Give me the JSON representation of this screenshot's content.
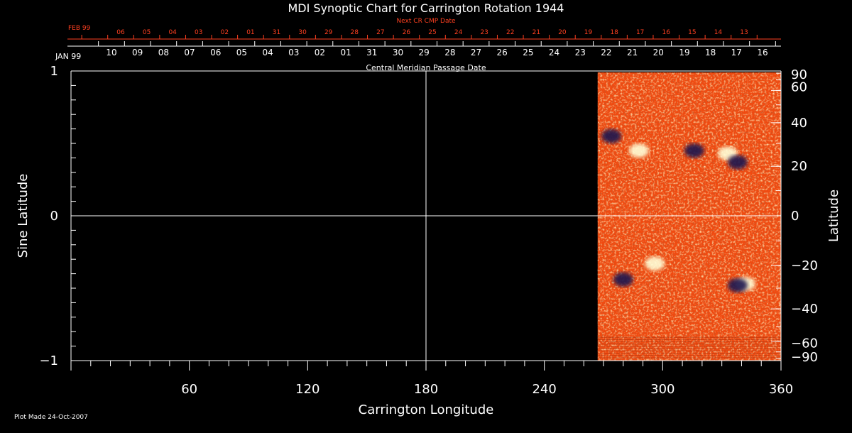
{
  "chart_data": {
    "type": "heatmap",
    "title": "MDI Synoptic Chart for Carrington Rotation 1944",
    "xlabel": "Carrington Longitude",
    "ylabel_left": "Sine Latitude",
    "ylabel_right": "Latitude",
    "xlim": [
      0,
      360
    ],
    "ylim": [
      -1,
      1
    ],
    "x_ticks": [
      "60",
      "120",
      "180",
      "240",
      "300",
      "360"
    ],
    "x_tick_values": [
      60,
      120,
      180,
      240,
      300,
      360
    ],
    "y_left_ticks": [
      "1",
      "0",
      "−1"
    ],
    "y_left_tick_values": [
      1,
      0,
      -1
    ],
    "y_right_ticks": [
      "90",
      "60",
      "40",
      "20",
      "0",
      "−20",
      "−40",
      "−60",
      "−90"
    ],
    "y_right_tick_values": [
      90,
      60,
      40,
      20,
      0,
      -20,
      -40,
      -60,
      -90
    ],
    "data_longitude_range": [
      267,
      360
    ],
    "grid_lines": {
      "longitude": 180,
      "sine_latitude": 0
    },
    "top_axis_cmp": {
      "label": "Central Meridian Passage Date",
      "start_label": "JAN 99",
      "dates": [
        "10",
        "09",
        "08",
        "07",
        "06",
        "05",
        "04",
        "03",
        "02",
        "01",
        "31",
        "30",
        "29",
        "28",
        "27",
        "26",
        "25",
        "24",
        "23",
        "22",
        "21",
        "20",
        "19",
        "18",
        "17",
        "16"
      ]
    },
    "top_axis_next_cmp": {
      "label": "Next CR CMP Date",
      "start_label": "FEB 99",
      "dates": [
        "06",
        "05",
        "04",
        "03",
        "02",
        "01",
        "31",
        "30",
        "29",
        "28",
        "27",
        "26",
        "25",
        "24",
        "23",
        "22",
        "21",
        "20",
        "19",
        "18",
        "17",
        "16",
        "15",
        "14",
        "13"
      ]
    },
    "magnetic_regions": [
      {
        "type": "negative",
        "lon": 274,
        "sinlat": 0.55
      },
      {
        "type": "positive",
        "lon": 288,
        "sinlat": 0.45
      },
      {
        "type": "negative",
        "lon": 316,
        "sinlat": 0.45
      },
      {
        "type": "positive",
        "lon": 333,
        "sinlat": 0.43
      },
      {
        "type": "negative",
        "lon": 338,
        "sinlat": 0.37
      },
      {
        "type": "positive",
        "lon": 296,
        "sinlat": -0.33
      },
      {
        "type": "negative",
        "lon": 280,
        "sinlat": -0.44
      },
      {
        "type": "positive",
        "lon": 342,
        "sinlat": -0.47
      },
      {
        "type": "negative",
        "lon": 338,
        "sinlat": -0.48
      }
    ]
  },
  "footer": {
    "plot_made": "Plot Made 24-Oct-2007"
  },
  "colors": {
    "background": "#000000",
    "axes": "#ffffff",
    "next_cmp": "#ff4020",
    "map_base": "#f04a10",
    "map_positive": "#ffffd8",
    "map_negative": "#1c1450"
  }
}
